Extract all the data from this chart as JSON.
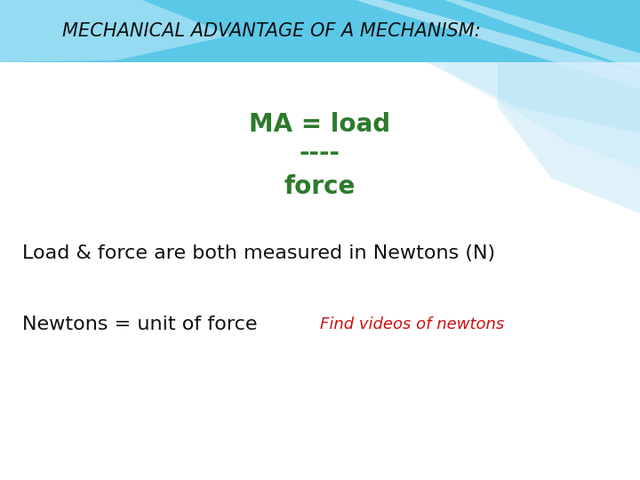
{
  "title": "MECHANICAL ADVANTAGE OF A MECHANISM:",
  "line1": "MA = load",
  "line2": "----",
  "line3": "force",
  "line4": "Load & force are both measured in Newtons (N)",
  "line5": "Newtons = unit of force",
  "line6": "Find videos of newtons",
  "bg_color": "#ffffff",
  "header_blue": "#5bc8e8",
  "header_light": "#90d8f0",
  "wave_light1": "#b0e0f8",
  "wave_light2": "#c8ecfc",
  "title_color": "#111111",
  "green_color": "#2d7a2d",
  "black_color": "#111111",
  "red_color": "#cc1111",
  "title_fontsize": 15,
  "green_fontsize": 20,
  "body_fontsize": 16,
  "red_fontsize": 13
}
